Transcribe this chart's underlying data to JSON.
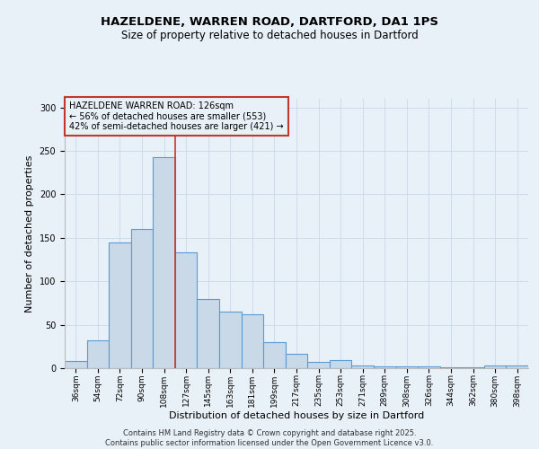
{
  "title_line1": "HAZELDENE, WARREN ROAD, DARTFORD, DA1 1PS",
  "title_line2": "Size of property relative to detached houses in Dartford",
  "xlabel": "Distribution of detached houses by size in Dartford",
  "ylabel": "Number of detached properties",
  "categories": [
    "36sqm",
    "54sqm",
    "72sqm",
    "90sqm",
    "108sqm",
    "127sqm",
    "145sqm",
    "163sqm",
    "181sqm",
    "199sqm",
    "217sqm",
    "235sqm",
    "253sqm",
    "271sqm",
    "289sqm",
    "308sqm",
    "326sqm",
    "344sqm",
    "362sqm",
    "380sqm",
    "398sqm"
  ],
  "values": [
    8,
    32,
    145,
    160,
    243,
    133,
    80,
    65,
    62,
    30,
    17,
    7,
    9,
    3,
    2,
    2,
    2,
    1,
    1,
    3,
    3
  ],
  "bar_color": "#c9d9e8",
  "bar_edge_color": "#5b9bd5",
  "bar_linewidth": 0.8,
  "vline_color": "#c0392b",
  "vline_linewidth": 1.2,
  "annotation_box_text": "HAZELDENE WARREN ROAD: 126sqm\n← 56% of detached houses are smaller (553)\n42% of semi-detached houses are larger (421) →",
  "annotation_box_color": "#c0392b",
  "ylim": [
    0,
    310
  ],
  "yticks": [
    0,
    50,
    100,
    150,
    200,
    250,
    300
  ],
  "grid_color": "#c8d8e8",
  "bg_color": "#e8f0f8",
  "footer_text": "Contains HM Land Registry data © Crown copyright and database right 2025.\nContains public sector information licensed under the Open Government Licence v3.0.",
  "title_fontsize": 9.5,
  "subtitle_fontsize": 8.5,
  "tick_fontsize": 6.5,
  "label_fontsize": 8,
  "annotation_fontsize": 7,
  "footer_fontsize": 6,
  "vline_x_index": 4.5
}
